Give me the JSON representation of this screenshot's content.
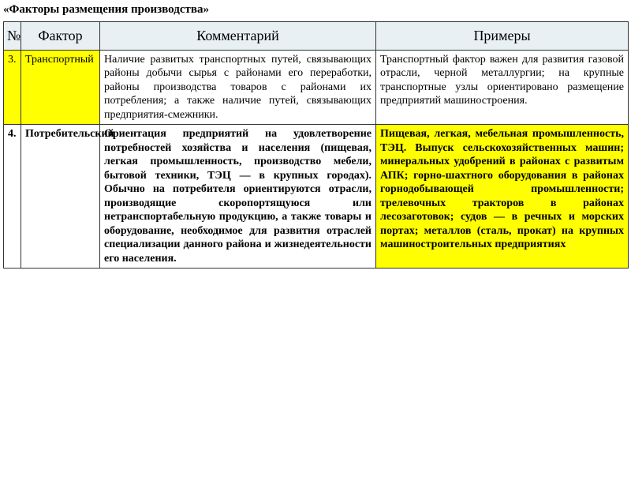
{
  "title": "«Факторы размещения производства»",
  "headers": {
    "num": "№",
    "factor": "Фактор",
    "comment": "Комментарий",
    "example": "Примеры"
  },
  "rows": [
    {
      "num": "3.",
      "factor": "Транспортный",
      "comment": "Наличие развитых транспортных путей, связывающих районы добычи сырья с районами его переработки, районы производства товаров с районами их потребления; а также наличие путей, связывающих предприятия-смежники.",
      "example": "Транспортный фактор важен для развития газовой отрасли, черной металлургии; на крупные транспортные узлы ориентировано размещение предприятий машиностроения.",
      "highlight": {
        "num": true,
        "factor": true,
        "comment": false,
        "example": false
      },
      "bold": false
    },
    {
      "num": "4.",
      "factor": "Потребительский",
      "comment": "Ориентация предприятий на удовлетворение потребностей хозяйства и населения (пищевая, легкая промышленность, производство мебели, бытовой техники, ТЭЦ — в крупных городах). Обычно на потребителя ориентируются отрасли, производящие скоропортящуюся или нетранспортабельную продукцию, а также товары и оборудование, необходимое для развития отраслей специализации данного района и жизнедеятельности его населения.",
      "example": "Пищевая, легкая, мебельная промышленность, ТЭЦ. Выпуск сельскохозяйственных машин; минеральных удобрений в районах с развитым АПК; горно-шахтного оборудования в районах горнодобывающей промышленности; трелевочных тракторов в районах лесозаготовок; судов — в речных и морских портах; металлов (сталь, прокат) на крупных машиностроительных предприятиях",
      "highlight": {
        "num": false,
        "factor": false,
        "comment": false,
        "example": true
      },
      "bold": true
    }
  ]
}
